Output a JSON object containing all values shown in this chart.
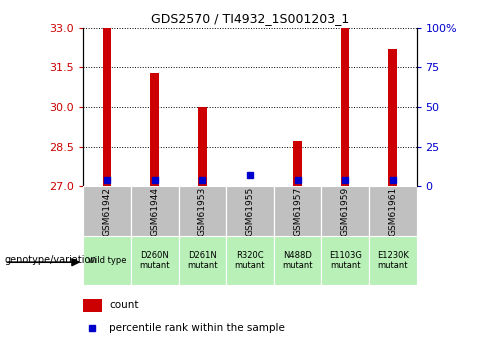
{
  "title": "GDS2570 / TI4932_1S001203_1",
  "samples": [
    "GSM61942",
    "GSM61944",
    "GSM61953",
    "GSM61955",
    "GSM61957",
    "GSM61959",
    "GSM61961"
  ],
  "genotypes": [
    "wild type",
    "D260N\nmutant",
    "D261N\nmutant",
    "R320C\nmutant",
    "N488D\nmutant",
    "E1103G\nmutant",
    "E1230K\nmutant"
  ],
  "count_values": [
    33.0,
    31.3,
    30.0,
    27.02,
    28.7,
    33.0,
    32.2
  ],
  "percentile_values": [
    27.22,
    27.22,
    27.22,
    27.42,
    27.22,
    27.22,
    27.22
  ],
  "y_min": 27,
  "y_max": 33,
  "y_ticks": [
    27,
    28.5,
    30,
    31.5,
    33
  ],
  "y_ticks_right": [
    0,
    25,
    50,
    75,
    100
  ],
  "y_right_labels": [
    "0",
    "25",
    "50",
    "75",
    "100%"
  ],
  "bar_color": "#cc0000",
  "percentile_color": "#0000cc",
  "sample_bg": "#c0c0c0",
  "genotype_bg": "#b8f0b8",
  "bar_width": 0.18
}
